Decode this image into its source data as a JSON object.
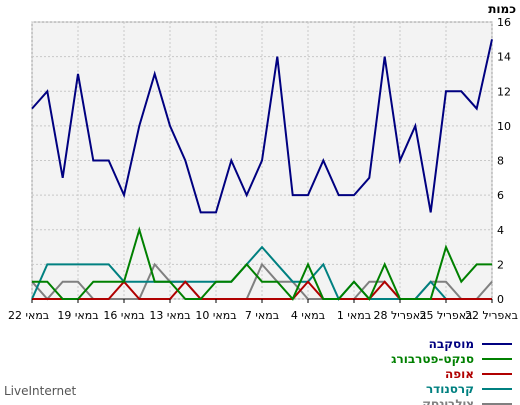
{
  "chart_data": {
    "type": "line",
    "ylabel": "כמות",
    "ylim": [
      0,
      16
    ],
    "yticks": [
      0,
      2,
      4,
      6,
      8,
      10,
      12,
      14,
      16
    ],
    "x_order": "right-to-left",
    "x_tick_labels": [
      "22 באפריל",
      "25 באפריל",
      "28 באפריל",
      "1 במאי",
      "4 במאי",
      "7 במאי",
      "10 במאי",
      "13 במאי",
      "16 במאי",
      "19 במאי",
      "22 במאי"
    ],
    "grid": true,
    "legend_position": "bottom",
    "series": [
      {
        "name": "מוסקבה",
        "color": "#000080",
        "values": [
          15,
          11,
          12,
          12,
          5,
          10,
          8,
          14,
          7,
          6,
          6,
          8,
          6,
          6,
          14,
          8,
          6,
          8,
          5,
          5,
          8,
          10,
          13,
          10,
          6,
          8,
          8,
          13,
          7,
          12,
          11
        ]
      },
      {
        "name": "סנקט-פטרבורג",
        "color": "#008000",
        "values": [
          2,
          2,
          1,
          3,
          0,
          0,
          0,
          2,
          0,
          1,
          0,
          0,
          2,
          0,
          1,
          1,
          2,
          1,
          1,
          0,
          0,
          1,
          1,
          4,
          1,
          1,
          1,
          0,
          0,
          1,
          1
        ]
      },
      {
        "name": "אופה",
        "color": "#b00000",
        "values": [
          0,
          0,
          0,
          0,
          0,
          0,
          0,
          1,
          0,
          0,
          0,
          0,
          1,
          0,
          0,
          0,
          0,
          0,
          0,
          0,
          1,
          0,
          0,
          0,
          1,
          0,
          0,
          0,
          0,
          0,
          0
        ]
      },
      {
        "name": "קרסנודר",
        "color": "#008080",
        "values": [
          0,
          0,
          0,
          0,
          1,
          0,
          0,
          0,
          0,
          1,
          0,
          2,
          1,
          1,
          2,
          3,
          2,
          1,
          1,
          1,
          1,
          1,
          1,
          1,
          1,
          2,
          2,
          2,
          2,
          2,
          0
        ]
      },
      {
        "name": "צילבינסק",
        "color": "#808080",
        "values": [
          1,
          0,
          0,
          1,
          1,
          0,
          0,
          1,
          1,
          0,
          0,
          0,
          0,
          1,
          1,
          2,
          0,
          0,
          0,
          0,
          1,
          1,
          2,
          0,
          0,
          0,
          0,
          1,
          1,
          0,
          1
        ]
      }
    ]
  },
  "brand": "LiveInternet"
}
